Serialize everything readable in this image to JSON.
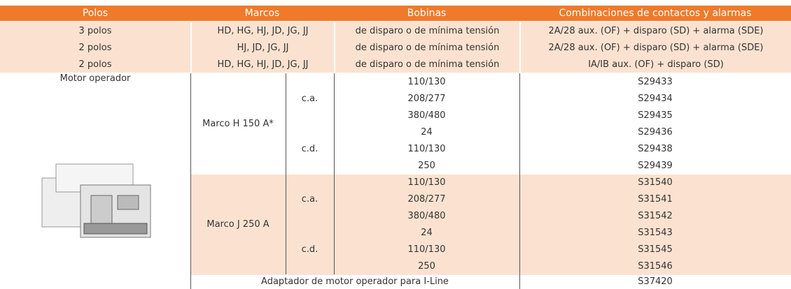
{
  "header": [
    "Polos",
    "Marcos",
    "Bobinas",
    "Combinaciones de contactos y alarmas"
  ],
  "top_rows": [
    [
      "3 polos",
      "HD, HG, HJ, JD, JG, JJ",
      "de disparo o de mínima tensión",
      "2A/28 aux. (OF) + disparo (SD) + alarma (SDE)"
    ],
    [
      "2 polos",
      "HJ, JD, JG, JJ",
      "de disparo o de mínima tensión",
      "2A/28 aux. (OF) + disparo (SD) + alarma (SDE)"
    ],
    [
      "2 polos",
      "HD, HG, HJ, JD, JG, JJ",
      "de disparo o de mínima tensión",
      "IA/IB aux. (OF) + disparo (SD)"
    ]
  ],
  "motor": {
    "label": "Motor operador",
    "groups": [
      {
        "marco": "Marco H 150 A*",
        "subgroups": [
          {
            "type": "c.a.",
            "rows": [
              [
                "110/130",
                "S29433"
              ],
              [
                "208/277",
                "S29434"
              ],
              [
                "380/480",
                "S29435"
              ]
            ]
          },
          {
            "type": "c.d.",
            "rows": [
              [
                "24",
                "S29436"
              ],
              [
                "110/130",
                "S29438"
              ],
              [
                "250",
                "S29439"
              ]
            ]
          }
        ]
      },
      {
        "marco": "Marco J 250 A",
        "subgroups": [
          {
            "type": "c.a.",
            "rows": [
              [
                "110/130",
                "S31540"
              ],
              [
                "208/277",
                "S31541"
              ],
              [
                "380/480",
                "S31542"
              ]
            ]
          },
          {
            "type": "c.d.",
            "rows": [
              [
                "24",
                "S31543"
              ],
              [
                "110/130",
                "S31545"
              ],
              [
                "250",
                "S31546"
              ]
            ]
          }
        ]
      }
    ]
  },
  "footer": {
    "label": "Adaptador de motor operador para I-Line",
    "code": "S37420"
  }
}
